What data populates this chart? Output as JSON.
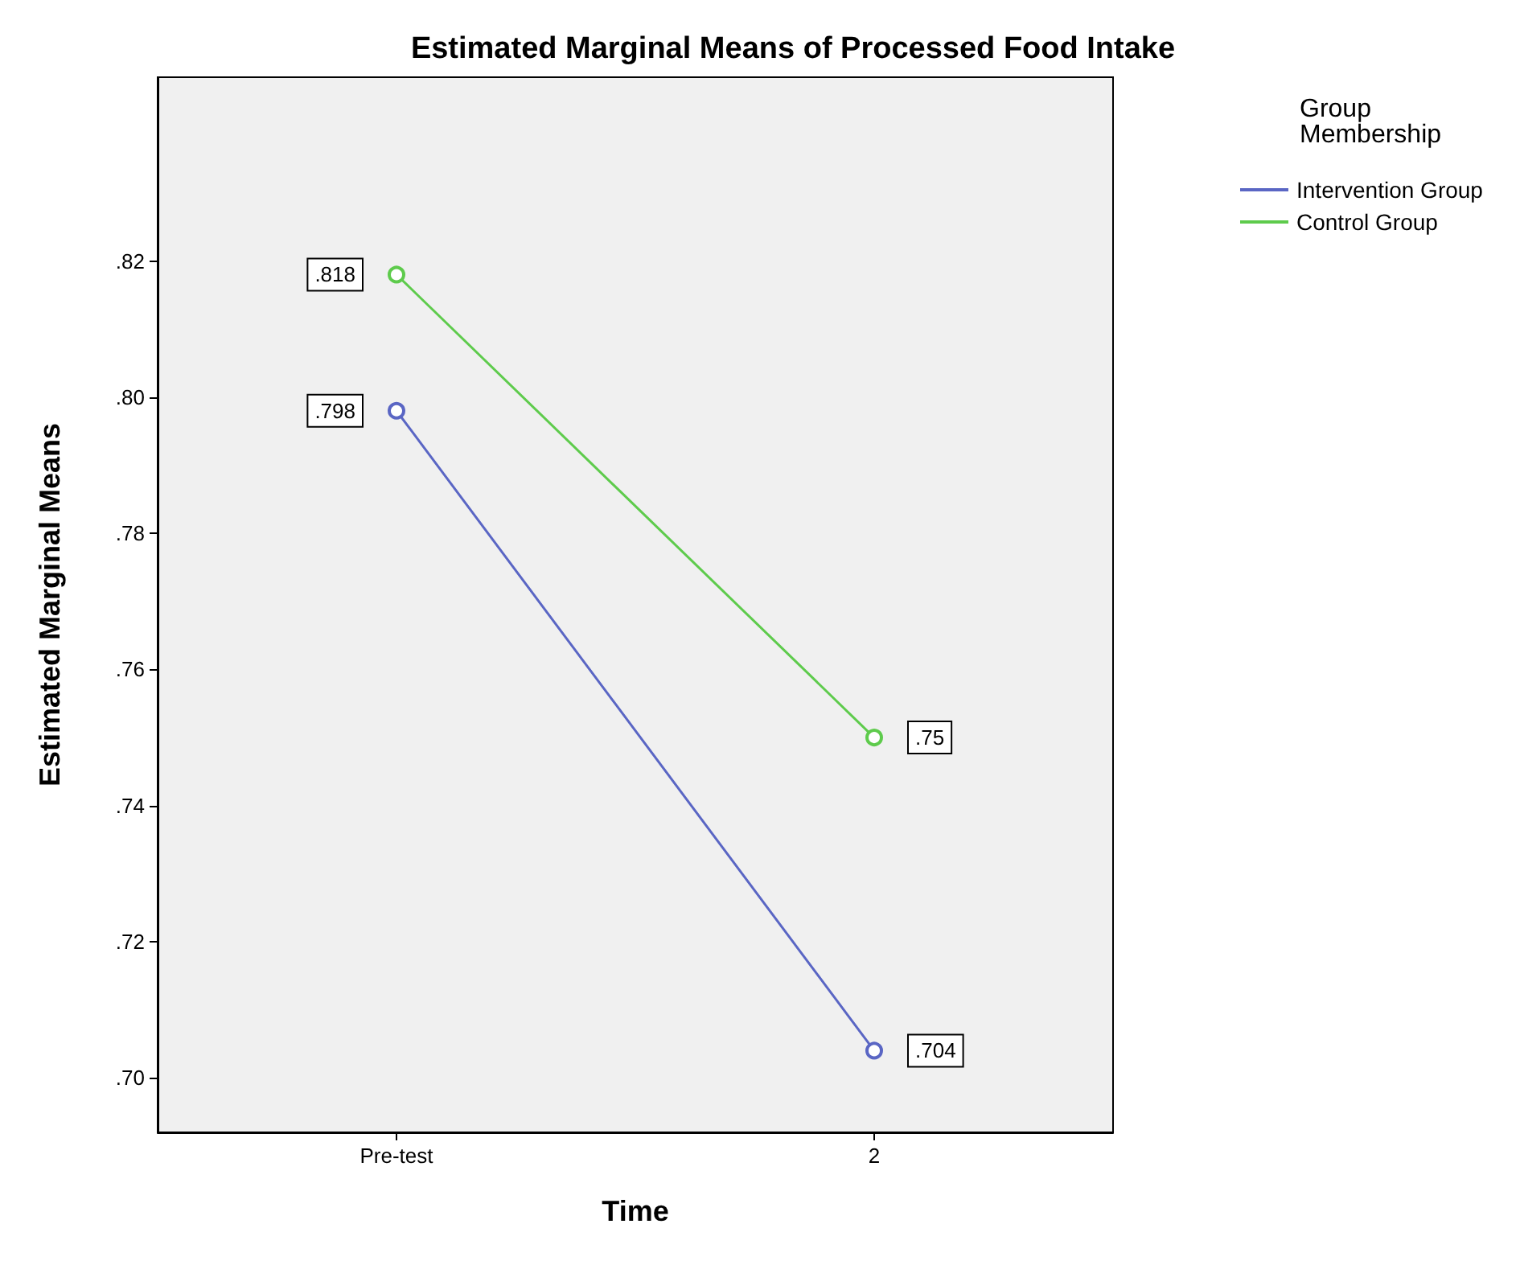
{
  "chart_data": {
    "type": "line",
    "title": "Estimated Marginal Means of Processed Food Intake",
    "xlabel": "Time",
    "ylabel": "Estimated Marginal Means",
    "legend_title": "Group Membership",
    "categories": [
      "Pre-test",
      "2"
    ],
    "series": [
      {
        "name": "Intervention Group",
        "color": "#5a66c4",
        "values": [
          0.798,
          0.704
        ],
        "value_labels": [
          ".798",
          ".704"
        ]
      },
      {
        "name": "Control Group",
        "color": "#5ecb4c",
        "values": [
          0.818,
          0.75
        ],
        "value_labels": [
          ".818",
          ".75"
        ]
      }
    ],
    "ylim": [
      0.692,
      0.847
    ],
    "yticks": [
      {
        "value": 0.7,
        "label": ".70"
      },
      {
        "value": 0.72,
        "label": ".72"
      },
      {
        "value": 0.74,
        "label": ".74"
      },
      {
        "value": 0.76,
        "label": ".76"
      },
      {
        "value": 0.78,
        "label": ".78"
      },
      {
        "value": 0.8,
        "label": ".80"
      },
      {
        "value": 0.82,
        "label": ".82"
      }
    ],
    "grid": false,
    "legend": "right",
    "marker": "circle",
    "line_style": "solid"
  }
}
